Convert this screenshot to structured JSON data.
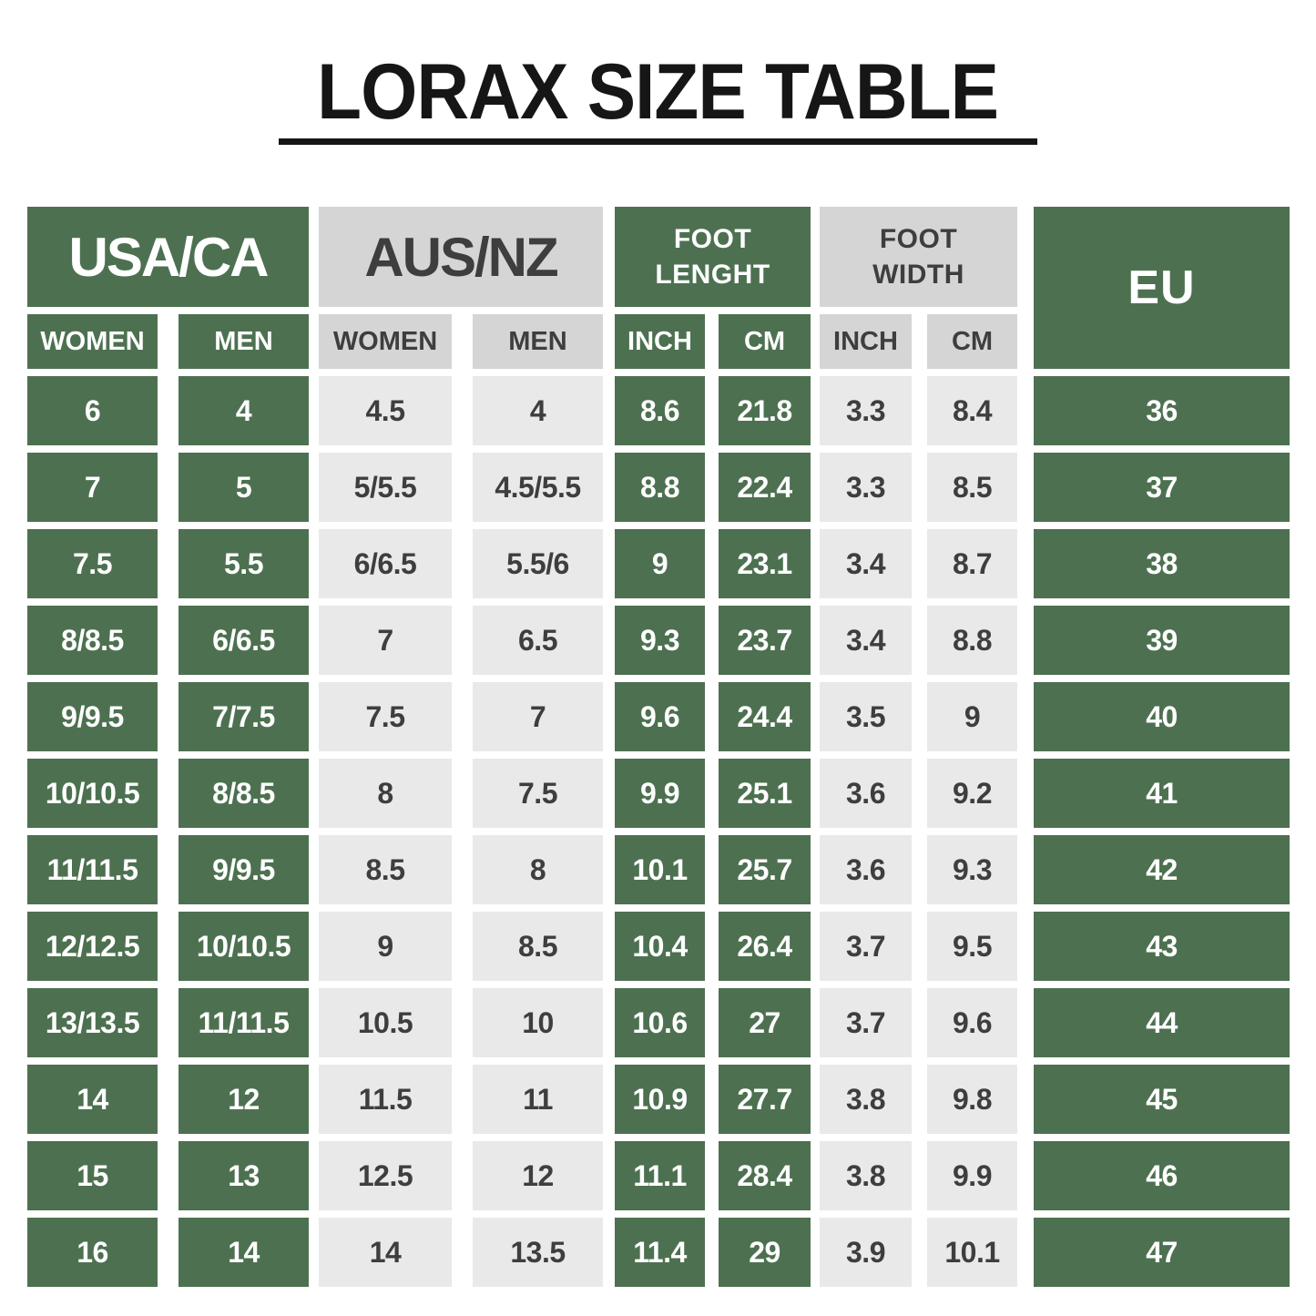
{
  "page": {
    "title": "LORAX SIZE TABLE"
  },
  "colors": {
    "green": "#4d7150",
    "header_gray": "#d5d5d5",
    "cell_gray": "#e9e9e9",
    "dark_text": "#3e3e3e",
    "title_black": "#161616",
    "white_text": "#ffffff"
  },
  "table": {
    "groups": [
      {
        "label": "USA/CA",
        "tone": "green"
      },
      {
        "label": "AUS/NZ",
        "tone": "gray"
      },
      {
        "label": "FOOT\nLENGHT",
        "tone": "green"
      },
      {
        "label": "FOOT\nWIDTH",
        "tone": "gray"
      },
      {
        "label": "EU",
        "tone": "green"
      }
    ],
    "subheaders": [
      {
        "label": "WOMEN",
        "tone": "green"
      },
      {
        "label": "MEN",
        "tone": "green"
      },
      {
        "label": "WOMEN",
        "tone": "gray"
      },
      {
        "label": "MEN",
        "tone": "gray"
      },
      {
        "label": "INCH",
        "tone": "green"
      },
      {
        "label": "CM",
        "tone": "green"
      },
      {
        "label": "INCH",
        "tone": "gray"
      },
      {
        "label": "CM",
        "tone": "gray"
      }
    ],
    "column_tones": [
      "green",
      "green",
      "gray",
      "gray",
      "green",
      "green",
      "gray",
      "gray",
      "green"
    ],
    "rows": [
      [
        "6",
        "4",
        "4.5",
        "4",
        "8.6",
        "21.8",
        "3.3",
        "8.4",
        "36"
      ],
      [
        "7",
        "5",
        "5/5.5",
        "4.5/5.5",
        "8.8",
        "22.4",
        "3.3",
        "8.5",
        "37"
      ],
      [
        "7.5",
        "5.5",
        "6/6.5",
        "5.5/6",
        "9",
        "23.1",
        "3.4",
        "8.7",
        "38"
      ],
      [
        "8/8.5",
        "6/6.5",
        "7",
        "6.5",
        "9.3",
        "23.7",
        "3.4",
        "8.8",
        "39"
      ],
      [
        "9/9.5",
        "7/7.5",
        "7.5",
        "7",
        "9.6",
        "24.4",
        "3.5",
        "9",
        "40"
      ],
      [
        "10/10.5",
        "8/8.5",
        "8",
        "7.5",
        "9.9",
        "25.1",
        "3.6",
        "9.2",
        "41"
      ],
      [
        "11/11.5",
        "9/9.5",
        "8.5",
        "8",
        "10.1",
        "25.7",
        "3.6",
        "9.3",
        "42"
      ],
      [
        "12/12.5",
        "10/10.5",
        "9",
        "8.5",
        "10.4",
        "26.4",
        "3.7",
        "9.5",
        "43"
      ],
      [
        "13/13.5",
        "11/11.5",
        "10.5",
        "10",
        "10.6",
        "27",
        "3.7",
        "9.6",
        "44"
      ],
      [
        "14",
        "12",
        "11.5",
        "11",
        "10.9",
        "27.7",
        "3.8",
        "9.8",
        "45"
      ],
      [
        "15",
        "13",
        "12.5",
        "12",
        "11.1",
        "28.4",
        "3.8",
        "9.9",
        "46"
      ],
      [
        "16",
        "14",
        "14",
        "13.5",
        "11.4",
        "29",
        "3.9",
        "10.1",
        "47"
      ]
    ]
  },
  "chart_data": {
    "type": "table",
    "title": "LORAX SIZE TABLE",
    "column_groups": [
      "USA/CA",
      "USA/CA",
      "AUS/NZ",
      "AUS/NZ",
      "FOOT LENGHT",
      "FOOT LENGHT",
      "FOOT WIDTH",
      "FOOT WIDTH",
      "EU"
    ],
    "columns": [
      "USA/CA WOMEN",
      "USA/CA MEN",
      "AUS/NZ WOMEN",
      "AUS/NZ MEN",
      "FOOT LENGHT INCH",
      "FOOT LENGHT CM",
      "FOOT WIDTH INCH",
      "FOOT WIDTH CM",
      "EU"
    ],
    "rows": [
      [
        "6",
        "4",
        "4.5",
        "4",
        "8.6",
        "21.8",
        "3.3",
        "8.4",
        "36"
      ],
      [
        "7",
        "5",
        "5/5.5",
        "4.5/5.5",
        "8.8",
        "22.4",
        "3.3",
        "8.5",
        "37"
      ],
      [
        "7.5",
        "5.5",
        "6/6.5",
        "5.5/6",
        "9",
        "23.1",
        "3.4",
        "8.7",
        "38"
      ],
      [
        "8/8.5",
        "6/6.5",
        "7",
        "6.5",
        "9.3",
        "23.7",
        "3.4",
        "8.8",
        "39"
      ],
      [
        "9/9.5",
        "7/7.5",
        "7.5",
        "7",
        "9.6",
        "24.4",
        "3.5",
        "9",
        "40"
      ],
      [
        "10/10.5",
        "8/8.5",
        "8",
        "7.5",
        "9.9",
        "25.1",
        "3.6",
        "9.2",
        "41"
      ],
      [
        "11/11.5",
        "9/9.5",
        "8.5",
        "8",
        "10.1",
        "25.7",
        "3.6",
        "9.3",
        "42"
      ],
      [
        "12/12.5",
        "10/10.5",
        "9",
        "8.5",
        "10.4",
        "26.4",
        "3.7",
        "9.5",
        "43"
      ],
      [
        "13/13.5",
        "11/11.5",
        "10.5",
        "10",
        "10.6",
        "27",
        "3.7",
        "9.6",
        "44"
      ],
      [
        "14",
        "12",
        "11.5",
        "11",
        "10.9",
        "27.7",
        "3.8",
        "9.8",
        "45"
      ],
      [
        "15",
        "13",
        "12.5",
        "12",
        "11.1",
        "28.4",
        "3.8",
        "9.9",
        "46"
      ],
      [
        "16",
        "14",
        "14",
        "13.5",
        "11.4",
        "29",
        "3.9",
        "10.1",
        "47"
      ]
    ]
  }
}
